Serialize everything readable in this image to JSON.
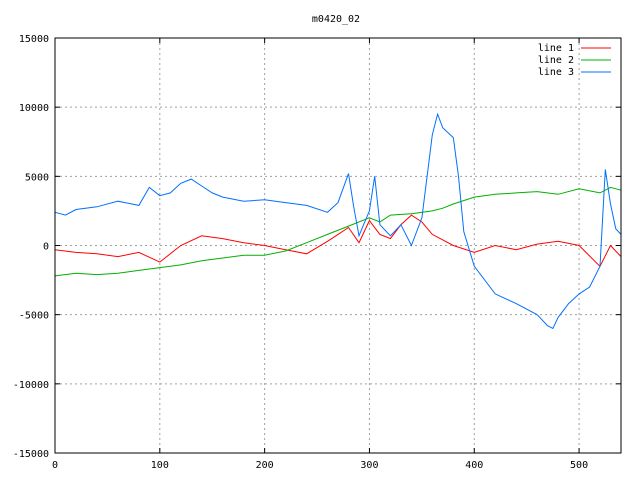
{
  "chart_data": {
    "type": "line",
    "title": "m0420_02",
    "xlabel": "",
    "ylabel": "",
    "xlim": [
      0,
      540
    ],
    "ylim": [
      -15000,
      15000
    ],
    "xticks": [
      0,
      100,
      200,
      300,
      400,
      500
    ],
    "yticks": [
      -15000,
      -10000,
      -5000,
      0,
      5000,
      10000,
      15000
    ],
    "grid": true,
    "legend_position": "top-right",
    "series": [
      {
        "name": "line 1",
        "color": "#ff0000",
        "x": [
          0,
          20,
          40,
          60,
          80,
          100,
          120,
          140,
          160,
          180,
          200,
          220,
          240,
          260,
          270,
          280,
          290,
          300,
          310,
          320,
          330,
          340,
          350,
          360,
          380,
          400,
          420,
          440,
          460,
          480,
          500,
          520,
          530,
          540
        ],
        "y": [
          -300,
          -500,
          -600,
          -800,
          -500,
          -1200,
          0,
          700,
          500,
          200,
          0,
          -300,
          -600,
          300,
          800,
          1300,
          200,
          1800,
          800,
          500,
          1500,
          2200,
          1700,
          800,
          0,
          -500,
          0,
          -300,
          100,
          300,
          0,
          -1500,
          0,
          -800
        ]
      },
      {
        "name": "line 2",
        "color": "#00b000",
        "x": [
          0,
          20,
          40,
          60,
          80,
          100,
          120,
          140,
          160,
          180,
          200,
          220,
          240,
          260,
          280,
          300,
          310,
          320,
          340,
          360,
          370,
          380,
          400,
          420,
          440,
          460,
          480,
          500,
          520,
          530,
          540
        ],
        "y": [
          -2200,
          -2000,
          -2100,
          -2000,
          -1800,
          -1600,
          -1400,
          -1100,
          -900,
          -700,
          -700,
          -400,
          200,
          800,
          1400,
          2000,
          1700,
          2200,
          2300,
          2500,
          2700,
          3000,
          3500,
          3700,
          3800,
          3900,
          3700,
          4100,
          3800,
          4200,
          4000
        ]
      },
      {
        "name": "line 3",
        "color": "#0070ff",
        "x": [
          0,
          10,
          20,
          40,
          60,
          80,
          90,
          100,
          110,
          120,
          130,
          140,
          150,
          160,
          180,
          200,
          220,
          240,
          260,
          270,
          280,
          285,
          290,
          300,
          305,
          310,
          320,
          330,
          340,
          350,
          360,
          365,
          370,
          380,
          385,
          390,
          400,
          420,
          440,
          460,
          470,
          475,
          480,
          490,
          500,
          510,
          520,
          525,
          530,
          535,
          540
        ],
        "y": [
          2400,
          2200,
          2600,
          2800,
          3200,
          2900,
          4200,
          3600,
          3800,
          4500,
          4800,
          4300,
          3800,
          3500,
          3200,
          3300,
          3100,
          2900,
          2400,
          3100,
          5200,
          2800,
          700,
          2500,
          5000,
          1500,
          700,
          1500,
          0,
          2000,
          8000,
          9500,
          8500,
          7800,
          5000,
          1000,
          -1500,
          -3500,
          -4200,
          -5000,
          -5800,
          -6000,
          -5200,
          -4200,
          -3500,
          -3000,
          -1500,
          5500,
          3000,
          1200,
          800
        ]
      }
    ]
  }
}
